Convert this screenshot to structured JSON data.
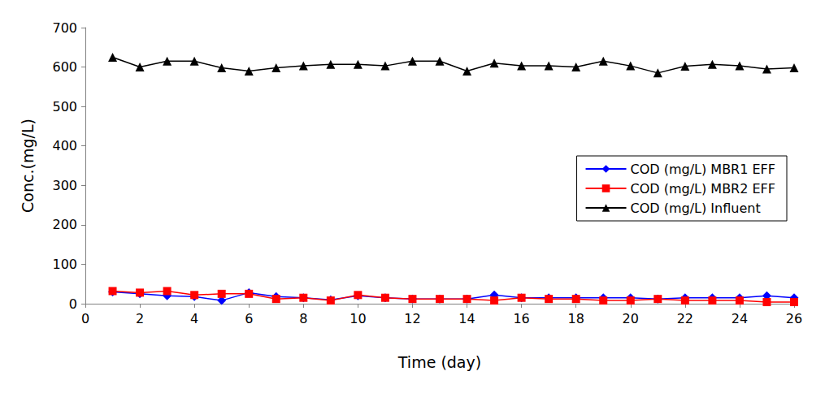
{
  "chart_data": {
    "type": "line",
    "x_label": "Time (day)",
    "y_label": "Conc.(mg/L)",
    "x": [
      1,
      2,
      3,
      4,
      5,
      6,
      7,
      8,
      9,
      10,
      11,
      12,
      13,
      14,
      15,
      16,
      17,
      18,
      19,
      20,
      21,
      22,
      23,
      24,
      25,
      26
    ],
    "series": [
      {
        "name": "COD (mg/L) MBR1 EFF",
        "color": "#0000ff",
        "marker": "diamond",
        "line_style": "solid",
        "values": [
          30,
          25,
          20,
          18,
          8,
          28,
          18,
          15,
          10,
          20,
          15,
          12,
          12,
          12,
          22,
          15,
          15,
          15,
          15,
          15,
          12,
          15,
          15,
          15,
          20,
          15
        ]
      },
      {
        "name": "COD (mg/L) MBR2 EFF",
        "color": "#ff0000",
        "marker": "square",
        "line_style": "solid",
        "values": [
          32,
          28,
          32,
          22,
          25,
          25,
          12,
          15,
          8,
          22,
          15,
          12,
          12,
          12,
          8,
          15,
          12,
          12,
          8,
          8,
          12,
          8,
          8,
          8,
          4,
          4
        ]
      },
      {
        "name": "COD (mg/L) Influent",
        "color": "#000000",
        "marker": "triangle",
        "line_style": "solid",
        "values": [
          625,
          600,
          615,
          615,
          598,
          590,
          598,
          603,
          607,
          607,
          603,
          615,
          615,
          590,
          610,
          603,
          603,
          600,
          615,
          603,
          585,
          602,
          607,
          603,
          595,
          598
        ]
      }
    ],
    "xlim": [
      0,
      26
    ],
    "xticks": [
      0,
      2,
      4,
      6,
      8,
      10,
      12,
      14,
      16,
      18,
      20,
      22,
      24,
      26
    ],
    "ylim": [
      0,
      700
    ],
    "yticks": [
      0,
      100,
      200,
      300,
      400,
      500,
      600,
      700
    ],
    "grid": false,
    "legend": "right"
  }
}
